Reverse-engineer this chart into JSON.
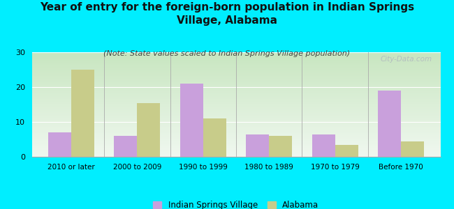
{
  "title": "Year of entry for the foreign-born population in Indian Springs\nVillage, Alabama",
  "subtitle": "(Note: State values scaled to Indian Springs Village population)",
  "categories": [
    "2010 or later",
    "2000 to 2009",
    "1990 to 1999",
    "1980 to 1989",
    "1970 to 1979",
    "Before 1970"
  ],
  "village_values": [
    7,
    6,
    21,
    6.5,
    6.5,
    19
  ],
  "alabama_values": [
    25,
    15.5,
    11,
    6,
    3.5,
    4.5
  ],
  "village_color": "#c9a0dc",
  "alabama_color": "#c8cc8a",
  "background_color": "#00eeff",
  "plot_bg_top": "#c8e6c0",
  "plot_bg_bottom": "#f0f8f0",
  "ylim": [
    0,
    30
  ],
  "yticks": [
    0,
    10,
    20,
    30
  ],
  "bar_width": 0.35,
  "legend_village": "Indian Springs Village",
  "legend_alabama": "Alabama",
  "title_fontsize": 11,
  "subtitle_fontsize": 8,
  "watermark": "City-Data.com"
}
